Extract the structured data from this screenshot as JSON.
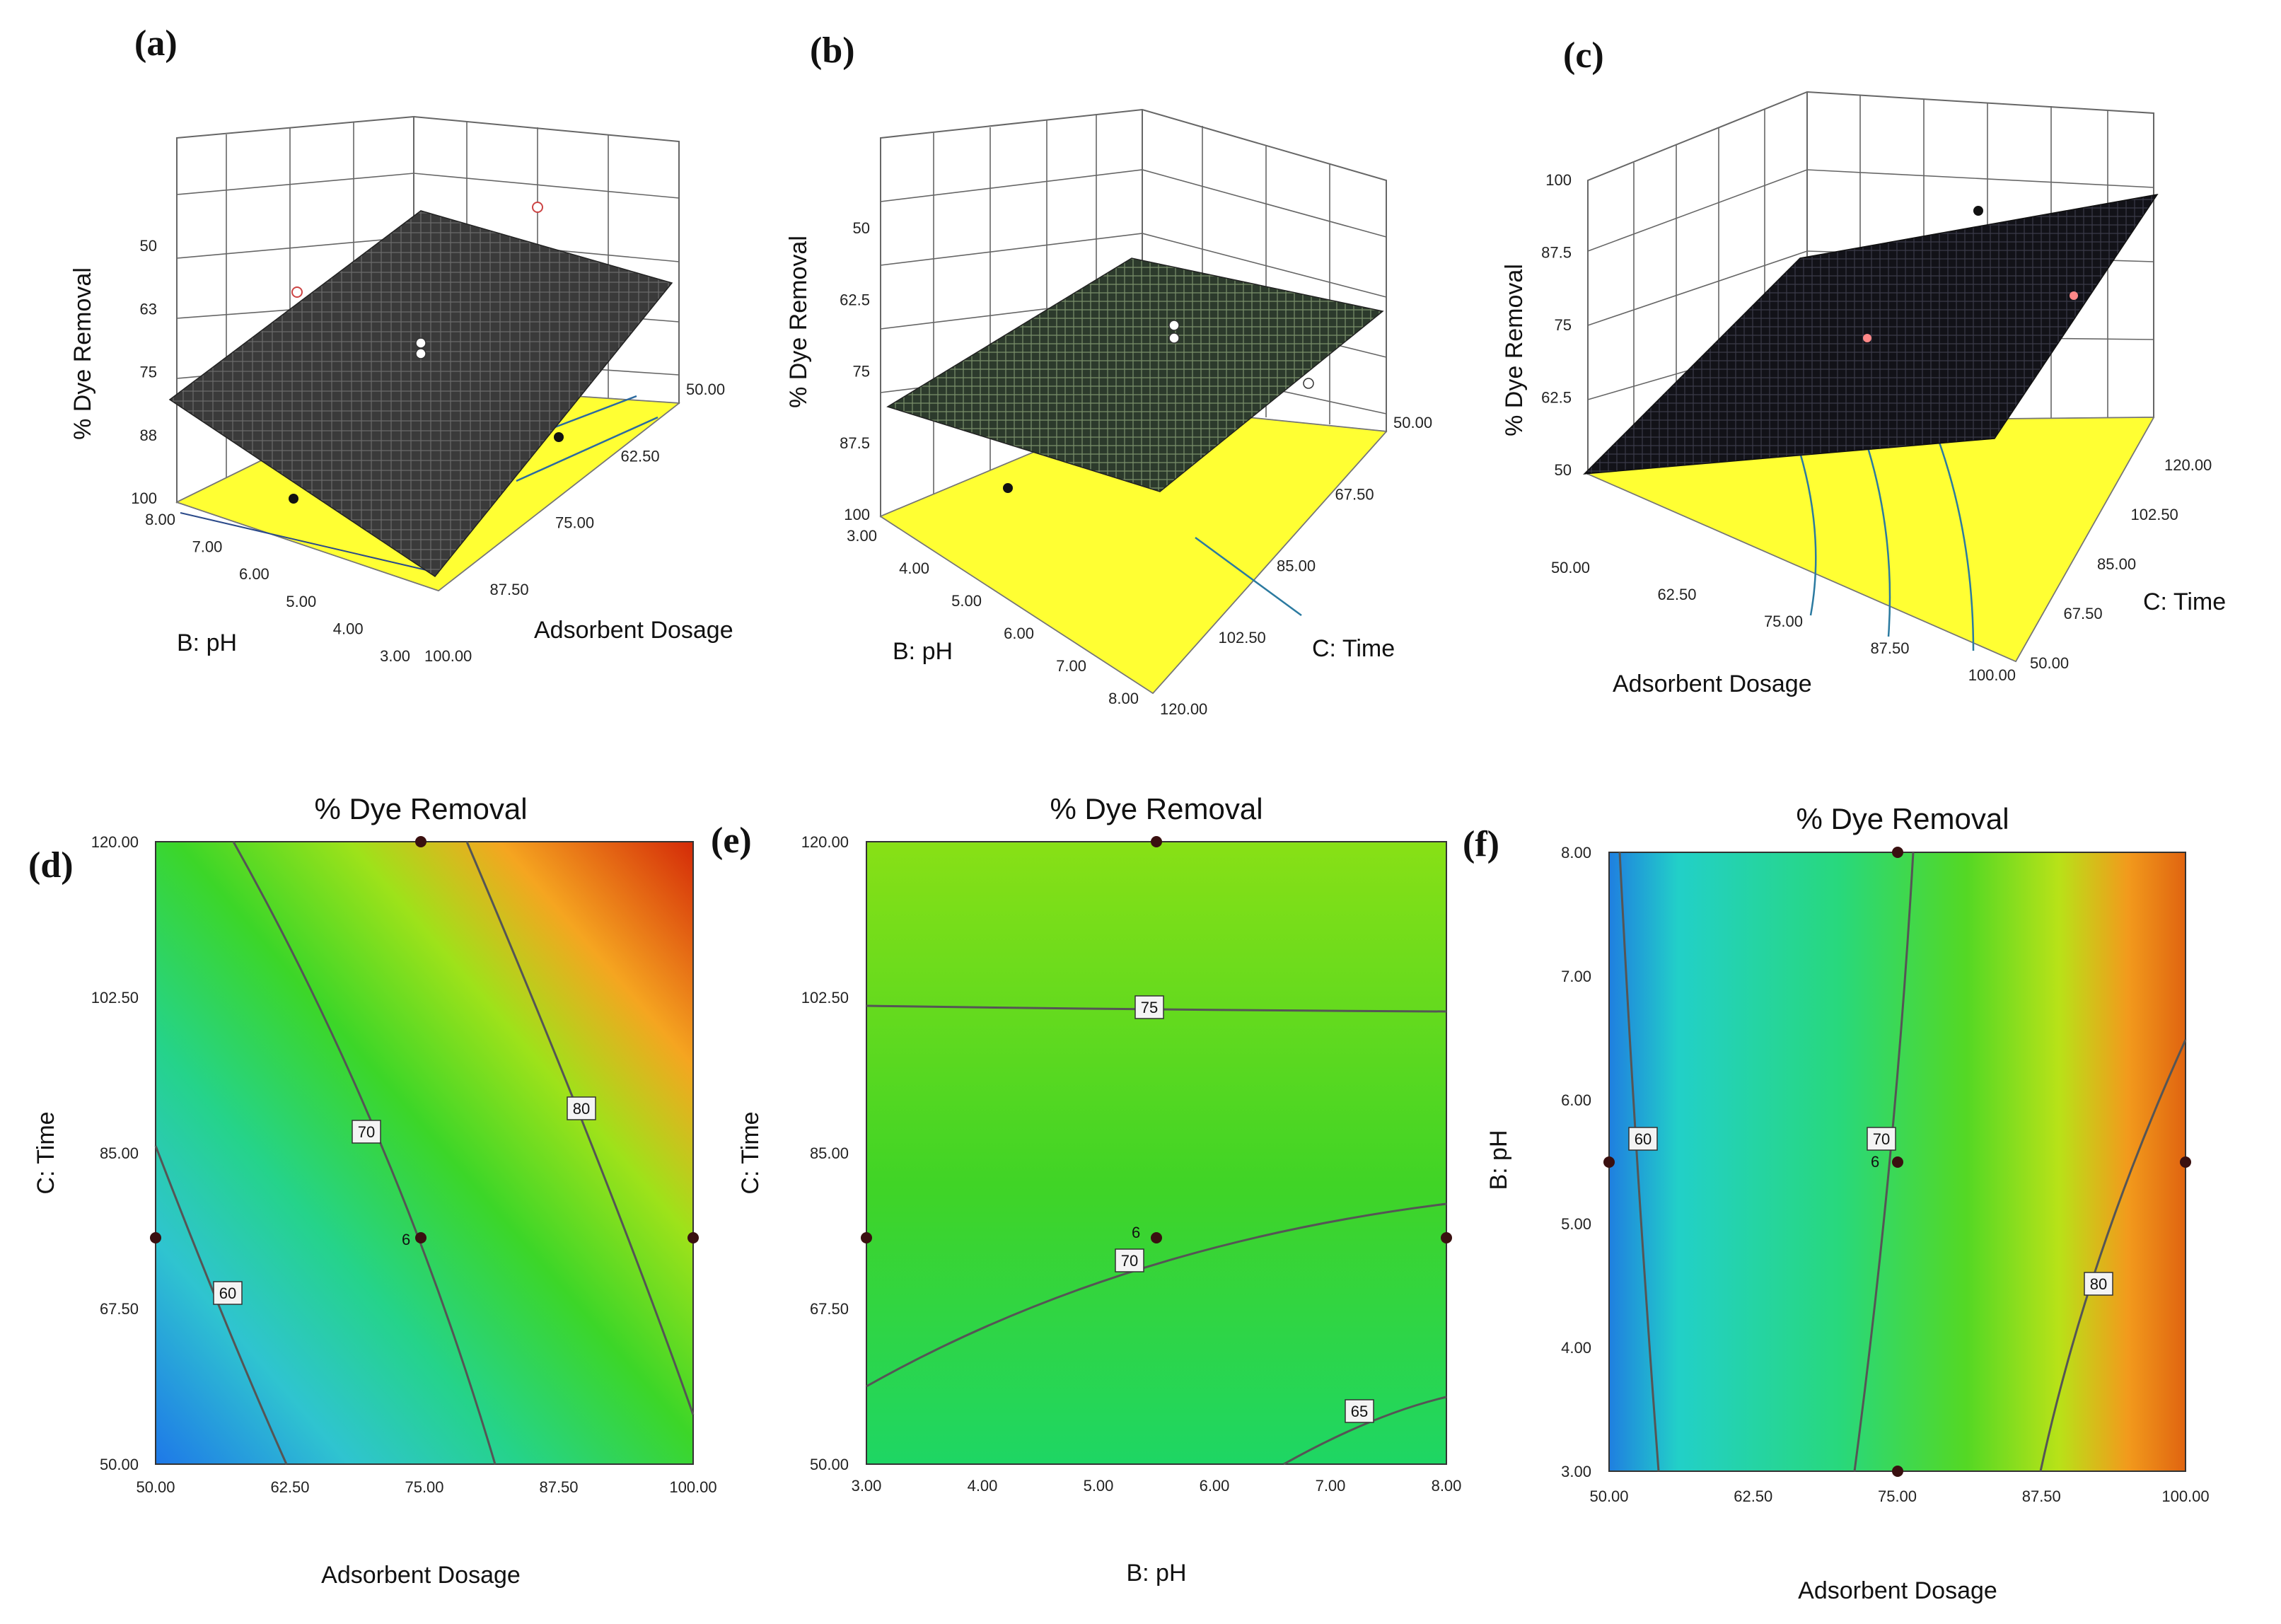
{
  "chart_data": [
    {
      "panel": "(a)",
      "type": "surface3d",
      "zlabel": "% Dye Removal",
      "zticks": [
        "50",
        "63",
        "75",
        "88",
        "100"
      ],
      "xlabel": "B: pH",
      "xticks": [
        "8.00",
        "7.00",
        "6.00",
        "5.00",
        "4.00",
        "3.00"
      ],
      "ylabel": "Adsorbent Dosage",
      "yticks": [
        "100.00",
        "87.50",
        "75.00",
        "62.50",
        "50.00"
      ]
    },
    {
      "panel": "(b)",
      "type": "surface3d",
      "zlabel": "% Dye Removal",
      "zticks": [
        "50",
        "62.5",
        "75",
        "87.5",
        "100"
      ],
      "xlabel": "B: pH",
      "xticks": [
        "3.00",
        "4.00",
        "5.00",
        "6.00",
        "7.00",
        "8.00"
      ],
      "ylabel": "C: Time",
      "yticks": [
        "120.00",
        "102.50",
        "85.00",
        "67.50",
        "50.00"
      ]
    },
    {
      "panel": "(c)",
      "type": "surface3d",
      "zlabel": "% Dye Removal",
      "zticks": [
        "100",
        "87.5",
        "75",
        "62.5",
        "50"
      ],
      "xlabel": "Adsorbent Dosage",
      "xticks": [
        "50.00",
        "62.50",
        "75.00",
        "87.50",
        "100.00"
      ],
      "ylabel": "C: Time",
      "yticks": [
        "50.00",
        "67.50",
        "85.00",
        "102.50",
        "120.00"
      ]
    },
    {
      "panel": "(d)",
      "type": "contour",
      "title": "% Dye Removal",
      "xlabel": "Adsorbent Dosage",
      "ylabel": "C: Time",
      "xticks": [
        "50.00",
        "62.50",
        "75.00",
        "87.50",
        "100.00"
      ],
      "yticks": [
        "50.00",
        "67.50",
        "85.00",
        "102.50",
        "120.00"
      ],
      "contour_labels": [
        "60",
        "70",
        "80"
      ],
      "center_label": "6"
    },
    {
      "panel": "(e)",
      "type": "contour",
      "title": "% Dye Removal",
      "xlabel": "B: pH",
      "ylabel": "C: Time",
      "xticks": [
        "3.00",
        "4.00",
        "5.00",
        "6.00",
        "7.00",
        "8.00"
      ],
      "yticks": [
        "50.00",
        "67.50",
        "85.00",
        "102.50",
        "120.00"
      ],
      "contour_labels": [
        "75",
        "70",
        "65"
      ],
      "center_label": "6"
    },
    {
      "panel": "(f)",
      "type": "contour",
      "title": "% Dye Removal",
      "xlabel": "Adsorbent Dosage",
      "ylabel": "B: pH",
      "xticks": [
        "50.00",
        "62.50",
        "75.00",
        "87.50",
        "100.00"
      ],
      "yticks": [
        "3.00",
        "4.00",
        "5.00",
        "6.00",
        "7.00",
        "8.00"
      ],
      "contour_labels": [
        "60",
        "70",
        "80"
      ],
      "center_label": "6"
    }
  ]
}
